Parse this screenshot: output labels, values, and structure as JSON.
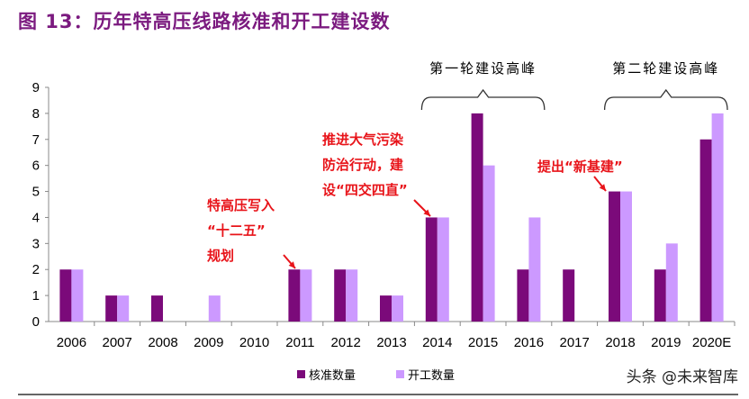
{
  "title": "图 13：历年特高压线路核准和开工建设数",
  "chart_data": {
    "type": "bar",
    "categories": [
      "2006",
      "2007",
      "2008",
      "2009",
      "2010",
      "2011",
      "2012",
      "2013",
      "2014",
      "2015",
      "2016",
      "2017",
      "2018",
      "2019",
      "2020E"
    ],
    "series": [
      {
        "name": "核准数量",
        "color": "#7b0a7a",
        "values": [
          2,
          1,
          1,
          0,
          0,
          2,
          2,
          1,
          4,
          8,
          2,
          2,
          5,
          2,
          7
        ]
      },
      {
        "name": "开工数量",
        "color": "#cc99ff",
        "values": [
          2,
          1,
          0,
          1,
          0,
          2,
          2,
          1,
          4,
          6,
          4,
          0,
          5,
          3,
          8
        ]
      }
    ],
    "ylim": [
      0,
      9
    ],
    "yticks": [
      "0",
      "1",
      "2",
      "3",
      "4",
      "5",
      "6",
      "7",
      "8",
      "9"
    ],
    "legend": "bottom",
    "annotations": [
      {
        "lines": [
          "特高压写入",
          "“十二五”",
          "规划"
        ],
        "category": "2011"
      },
      {
        "lines": [
          "推进大气污染",
          "防治行动，建",
          "设“四交四直”"
        ],
        "category": "2014"
      },
      {
        "lines": [
          "提出“新基建”"
        ],
        "category": "2018"
      }
    ],
    "brackets": [
      {
        "label": "第一轮建设高峰",
        "from": "2014",
        "to": "2016"
      },
      {
        "label": "第二轮建设高峰",
        "from": "2018",
        "to": "2020E"
      }
    ]
  },
  "watermark": "头条 @未来智库"
}
